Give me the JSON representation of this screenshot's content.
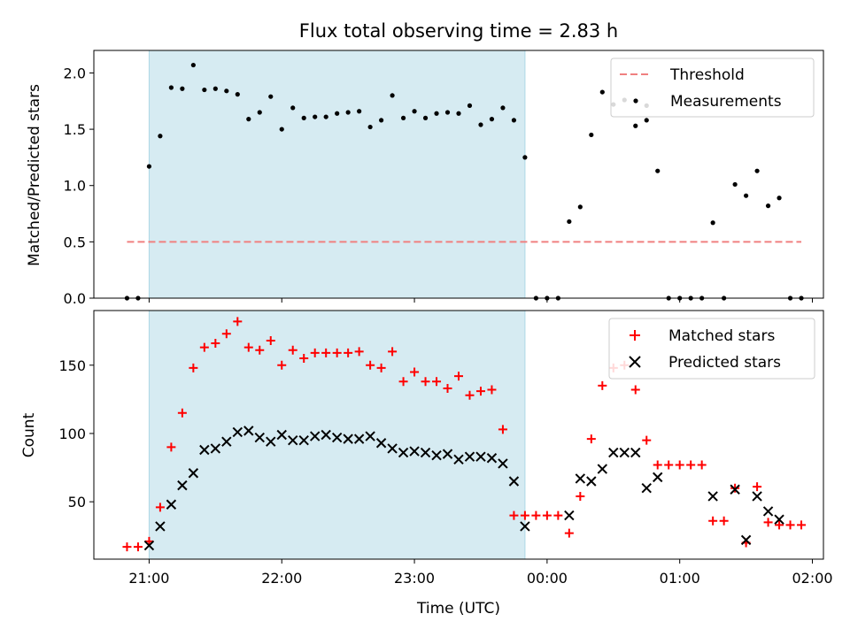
{
  "colors": {
    "shade": "#add8e6",
    "threshold": "#f08080",
    "matched": "#ff0000",
    "predicted": "#000000",
    "measurements": "#000000"
  },
  "chart_data": [
    {
      "type": "scatter",
      "title": "Flux total observing time = 2.83 h",
      "xlabel": "",
      "ylabel": "Matched/Predicted stars",
      "ylim": [
        0,
        2.2
      ],
      "yticks": [
        0.0,
        0.5,
        1.0,
        1.5,
        2.0
      ],
      "ytick_labels": [
        "0.0",
        "0.5",
        "1.0",
        "1.5",
        "2.0"
      ],
      "xlim": [
        "20:35",
        "02:05"
      ],
      "shaded_range": [
        "21:00",
        "23:50"
      ],
      "legend_position": "top-right",
      "legend": [
        "Threshold",
        "Measurements"
      ],
      "threshold": {
        "name": "Threshold",
        "value": 0.5,
        "x_range": [
          "20:50",
          "01:55"
        ]
      },
      "series": [
        {
          "name": "Measurements",
          "points": [
            [
              "20:50",
              0.0
            ],
            [
              "20:55",
              0.0
            ],
            [
              "21:00",
              1.17
            ],
            [
              "21:05",
              1.44
            ],
            [
              "21:10",
              1.87
            ],
            [
              "21:15",
              1.86
            ],
            [
              "21:20",
              2.07
            ],
            [
              "21:25",
              1.85
            ],
            [
              "21:30",
              1.86
            ],
            [
              "21:35",
              1.84
            ],
            [
              "21:40",
              1.81
            ],
            [
              "21:45",
              1.59
            ],
            [
              "21:50",
              1.65
            ],
            [
              "21:55",
              1.79
            ],
            [
              "22:00",
              1.5
            ],
            [
              "22:05",
              1.69
            ],
            [
              "22:10",
              1.6
            ],
            [
              "22:15",
              1.61
            ],
            [
              "22:20",
              1.61
            ],
            [
              "22:25",
              1.64
            ],
            [
              "22:30",
              1.65
            ],
            [
              "22:35",
              1.66
            ],
            [
              "22:40",
              1.52
            ],
            [
              "22:45",
              1.58
            ],
            [
              "22:50",
              1.8
            ],
            [
              "22:55",
              1.6
            ],
            [
              "23:00",
              1.66
            ],
            [
              "23:05",
              1.6
            ],
            [
              "23:10",
              1.64
            ],
            [
              "23:15",
              1.65
            ],
            [
              "23:20",
              1.64
            ],
            [
              "23:25",
              1.71
            ],
            [
              "23:30",
              1.54
            ],
            [
              "23:35",
              1.59
            ],
            [
              "23:40",
              1.69
            ],
            [
              "23:45",
              1.58
            ],
            [
              "23:50",
              1.25
            ],
            [
              "23:55",
              0.0
            ],
            [
              "00:00",
              0.0
            ],
            [
              "00:05",
              0.0
            ],
            [
              "00:10",
              0.68
            ],
            [
              "00:15",
              0.81
            ],
            [
              "00:20",
              1.45
            ],
            [
              "00:25",
              1.83
            ],
            [
              "00:30",
              1.72
            ],
            [
              "00:35",
              1.76
            ],
            [
              "00:40",
              1.53
            ],
            [
              "00:45",
              1.58
            ],
            [
              "00:45",
              1.71
            ],
            [
              "00:50",
              1.13
            ],
            [
              "00:55",
              0.0
            ],
            [
              "01:00",
              0.0
            ],
            [
              "01:05",
              0.0
            ],
            [
              "01:10",
              0.0
            ],
            [
              "01:15",
              0.67
            ],
            [
              "01:20",
              0.0
            ],
            [
              "01:25",
              1.01
            ],
            [
              "01:30",
              0.91
            ],
            [
              "01:35",
              1.13
            ],
            [
              "01:40",
              0.82
            ],
            [
              "01:45",
              0.89
            ],
            [
              "01:50",
              0.0
            ],
            [
              "01:55",
              0.0
            ]
          ]
        }
      ]
    },
    {
      "type": "scatter",
      "title": "",
      "xlabel": "Time (UTC)",
      "ylabel": "Count",
      "ylim": [
        8,
        190
      ],
      "yticks": [
        50,
        100,
        150
      ],
      "ytick_labels": [
        "50",
        "100",
        "150"
      ],
      "xlim": [
        "20:35",
        "02:05"
      ],
      "xticks": [
        "21:00",
        "22:00",
        "23:00",
        "00:00",
        "01:00",
        "02:00"
      ],
      "xtick_labels": [
        "21:00",
        "22:00",
        "23:00",
        "00:00",
        "01:00",
        "02:00"
      ],
      "shaded_range": [
        "21:00",
        "23:50"
      ],
      "legend_position": "top-right",
      "legend": [
        "Matched stars",
        "Predicted stars"
      ],
      "series": [
        {
          "name": "Matched stars",
          "marker": "+",
          "points": [
            [
              "20:50",
              17
            ],
            [
              "20:55",
              17
            ],
            [
              "21:00",
              21
            ],
            [
              "21:05",
              46
            ],
            [
              "21:10",
              90
            ],
            [
              "21:15",
              115
            ],
            [
              "21:20",
              148
            ],
            [
              "21:25",
              163
            ],
            [
              "21:30",
              166
            ],
            [
              "21:35",
              173
            ],
            [
              "21:40",
              182
            ],
            [
              "21:45",
              163
            ],
            [
              "21:50",
              161
            ],
            [
              "21:55",
              168
            ],
            [
              "22:00",
              150
            ],
            [
              "22:05",
              161
            ],
            [
              "22:10",
              155
            ],
            [
              "22:15",
              159
            ],
            [
              "22:20",
              159
            ],
            [
              "22:25",
              159
            ],
            [
              "22:30",
              159
            ],
            [
              "22:35",
              160
            ],
            [
              "22:40",
              150
            ],
            [
              "22:45",
              148
            ],
            [
              "22:50",
              160
            ],
            [
              "22:55",
              138
            ],
            [
              "23:00",
              145
            ],
            [
              "23:05",
              138
            ],
            [
              "23:10",
              138
            ],
            [
              "23:15",
              133
            ],
            [
              "23:20",
              142
            ],
            [
              "23:25",
              128
            ],
            [
              "23:30",
              131
            ],
            [
              "23:35",
              132
            ],
            [
              "23:40",
              103
            ],
            [
              "23:45",
              40
            ],
            [
              "23:50",
              40
            ],
            [
              "23:55",
              40
            ],
            [
              "00:00",
              40
            ],
            [
              "00:05",
              40
            ],
            [
              "00:10",
              27
            ],
            [
              "00:15",
              54
            ],
            [
              "00:20",
              96
            ],
            [
              "00:25",
              135
            ],
            [
              "00:30",
              148
            ],
            [
              "00:35",
              150
            ],
            [
              "00:40",
              132
            ],
            [
              "00:45",
              95
            ],
            [
              "00:50",
              77
            ],
            [
              "00:55",
              77
            ],
            [
              "01:00",
              77
            ],
            [
              "01:05",
              77
            ],
            [
              "01:10",
              77
            ],
            [
              "01:15",
              36
            ],
            [
              "01:20",
              36
            ],
            [
              "01:25",
              60
            ],
            [
              "01:30",
              20
            ],
            [
              "01:35",
              61
            ],
            [
              "01:40",
              35
            ],
            [
              "01:45",
              33
            ],
            [
              "01:50",
              33
            ],
            [
              "01:55",
              33
            ]
          ]
        },
        {
          "name": "Predicted stars",
          "marker": "x",
          "points": [
            [
              "21:00",
              18
            ],
            [
              "21:05",
              32
            ],
            [
              "21:10",
              48
            ],
            [
              "21:15",
              62
            ],
            [
              "21:20",
              71
            ],
            [
              "21:25",
              88
            ],
            [
              "21:30",
              89
            ],
            [
              "21:35",
              94
            ],
            [
              "21:40",
              101
            ],
            [
              "21:45",
              102
            ],
            [
              "21:50",
              97
            ],
            [
              "21:55",
              94
            ],
            [
              "22:00",
              99
            ],
            [
              "22:05",
              95
            ],
            [
              "22:10",
              95
            ],
            [
              "22:15",
              98
            ],
            [
              "22:20",
              99
            ],
            [
              "22:25",
              97
            ],
            [
              "22:30",
              96
            ],
            [
              "22:35",
              96
            ],
            [
              "22:40",
              98
            ],
            [
              "22:45",
              93
            ],
            [
              "22:50",
              89
            ],
            [
              "22:55",
              86
            ],
            [
              "23:00",
              87
            ],
            [
              "23:05",
              86
            ],
            [
              "23:10",
              84
            ],
            [
              "23:15",
              85
            ],
            [
              "23:20",
              81
            ],
            [
              "23:25",
              83
            ],
            [
              "23:30",
              83
            ],
            [
              "23:35",
              82
            ],
            [
              "23:40",
              78
            ],
            [
              "23:45",
              65
            ],
            [
              "23:50",
              32
            ],
            [
              "00:10",
              40
            ],
            [
              "00:15",
              67
            ],
            [
              "00:20",
              65
            ],
            [
              "00:25",
              74
            ],
            [
              "00:30",
              86
            ],
            [
              "00:35",
              86
            ],
            [
              "00:40",
              86
            ],
            [
              "00:45",
              60
            ],
            [
              "00:50",
              68
            ],
            [
              "01:15",
              54
            ],
            [
              "01:25",
              59
            ],
            [
              "01:30",
              22
            ],
            [
              "01:35",
              54
            ],
            [
              "01:40",
              43
            ],
            [
              "01:45",
              37
            ]
          ]
        }
      ]
    }
  ]
}
